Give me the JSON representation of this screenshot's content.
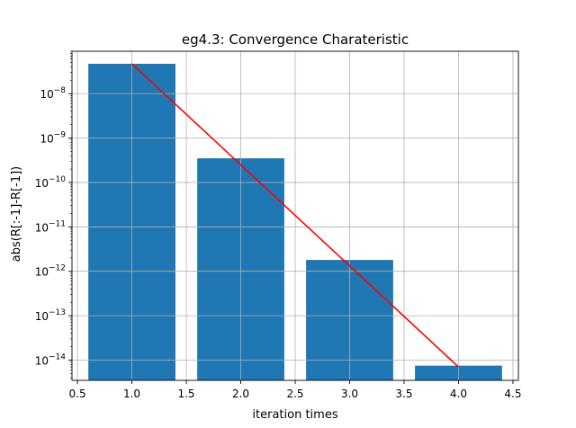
{
  "chart_data": {
    "type": "bar",
    "title": "eg4.3: Convergence Charateristic",
    "xlabel": "iteration times",
    "ylabel": "abs(R[:-1]-R[-1])",
    "yscale": "log",
    "xlim": [
      0.45,
      4.55
    ],
    "ylim": [
      3.5e-15,
      9e-08
    ],
    "grid": true,
    "bar_color": "#1f77b4",
    "line_color": "#ff0000",
    "bar_width": 0.8,
    "x_ticks": [
      {
        "value": 0.5,
        "label": "0.5"
      },
      {
        "value": 1.0,
        "label": "1.0"
      },
      {
        "value": 1.5,
        "label": "1.5"
      },
      {
        "value": 2.0,
        "label": "2.0"
      },
      {
        "value": 2.5,
        "label": "2.5"
      },
      {
        "value": 3.0,
        "label": "3.0"
      },
      {
        "value": 3.5,
        "label": "3.5"
      },
      {
        "value": 4.0,
        "label": "4.0"
      },
      {
        "value": 4.5,
        "label": "4.5"
      }
    ],
    "y_ticks": [
      {
        "exp": -14,
        "base": "10",
        "sup": "−14"
      },
      {
        "exp": -13,
        "base": "10",
        "sup": "−13"
      },
      {
        "exp": -12,
        "base": "10",
        "sup": "−12"
      },
      {
        "exp": -11,
        "base": "10",
        "sup": "−11"
      },
      {
        "exp": -10,
        "base": "10",
        "sup": "−10"
      },
      {
        "exp": -9,
        "base": "10",
        "sup": "−9"
      },
      {
        "exp": -8,
        "base": "10",
        "sup": "−8"
      }
    ],
    "bars": [
      {
        "x": 1,
        "y": 4.7e-08
      },
      {
        "x": 2,
        "y": 3.5e-10
      },
      {
        "x": 3,
        "y": 1.8e-12
      },
      {
        "x": 4,
        "y": 7.5e-15
      }
    ],
    "line": [
      {
        "x": 1,
        "y": 4.7e-08
      },
      {
        "x": 4,
        "y": 7e-15
      }
    ]
  }
}
